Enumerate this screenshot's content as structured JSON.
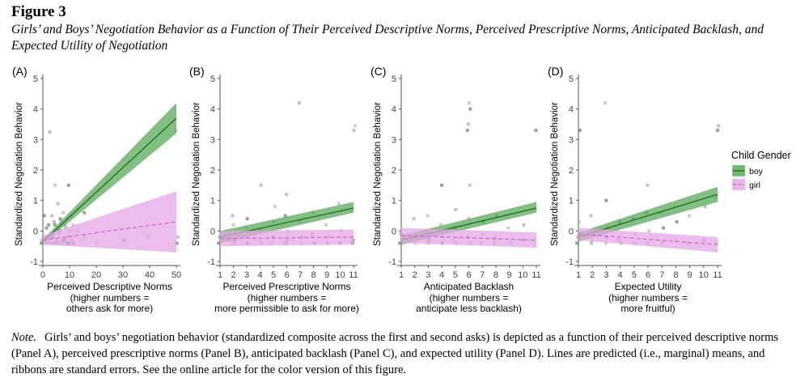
{
  "figure": {
    "label": "Figure 3",
    "title": "Girls’ and Boys’ Negotiation Behavior as a Function of Their Perceived Descriptive Norms, Perceived Prescriptive Norms, Anticipated Backlash, and Expected Utility of Negotiation",
    "note_label": "Note.",
    "note_text": "Girls’ and boys’ negotiation behavior (standardized composite across the first and second asks) is depicted as a function of their perceived descriptive norms (Panel A), perceived prescriptive norms (Panel B), anticipated backlash (Panel C), and expected utility (Panel D). Lines are predicted (i.e., marginal) means, and ribbons are standard errors. See the online article for the color version of this figure."
  },
  "legend": {
    "title": "Child Gender",
    "items": [
      {
        "label": "boy",
        "color": "#1f6b1f",
        "fill": "#59a859"
      },
      {
        "label": "girl",
        "color": "#cc6ccc",
        "fill": "#e6a6e6"
      }
    ]
  },
  "chart_data": [
    {
      "type": "line",
      "panel": "(A)",
      "ylabel": "Standardized Negotiation Behavior",
      "xlabel": "Perceived Descriptive Norms",
      "xlabel_sub": [
        "(higher numbers =",
        "others ask for more)"
      ],
      "xlim": [
        0,
        50
      ],
      "ylim": [
        -1,
        5
      ],
      "xticks": [
        0,
        10,
        20,
        30,
        40,
        50
      ],
      "yticks": [
        -1,
        0,
        1,
        2,
        3,
        4,
        5
      ],
      "series": [
        {
          "name": "boy",
          "x": [
            0,
            50
          ],
          "y": [
            -0.35,
            3.7
          ],
          "lower": [
            -0.42,
            3.2
          ],
          "upper": [
            -0.28,
            4.2
          ],
          "linestyle": "solid"
        },
        {
          "name": "girl",
          "x": [
            0,
            50
          ],
          "y": [
            -0.3,
            0.3
          ],
          "lower": [
            -0.45,
            -0.7
          ],
          "upper": [
            -0.15,
            1.3
          ],
          "linestyle": "dashed"
        }
      ],
      "points": [
        [
          0,
          -0.4
        ],
        [
          0,
          -0.3
        ],
        [
          0,
          -0.2
        ],
        [
          0,
          0.5
        ],
        [
          1,
          -0.4
        ],
        [
          1,
          -0.2
        ],
        [
          1,
          0.1
        ],
        [
          2,
          -0.4
        ],
        [
          2,
          -0.3
        ],
        [
          2,
          0.2
        ],
        [
          2,
          3.25
        ],
        [
          3,
          -0.4
        ],
        [
          3,
          -0.1
        ],
        [
          3,
          0.5
        ],
        [
          4,
          -0.4
        ],
        [
          4,
          -0.2
        ],
        [
          4,
          0.3
        ],
        [
          4,
          1.5
        ],
        [
          5,
          -0.4
        ],
        [
          5,
          -0.3
        ],
        [
          5,
          0.0
        ],
        [
          5,
          0.2
        ],
        [
          6,
          -0.4
        ],
        [
          6,
          -0.1
        ],
        [
          6,
          0.4
        ],
        [
          6,
          0.9
        ],
        [
          7,
          -0.4
        ],
        [
          7,
          -0.3
        ],
        [
          7,
          0.0
        ],
        [
          7,
          0.3
        ],
        [
          8,
          -0.3
        ],
        [
          8,
          0.1
        ],
        [
          8,
          0.6
        ],
        [
          9,
          -0.4
        ],
        [
          9,
          -0.2
        ],
        [
          9,
          0.2
        ],
        [
          10,
          -0.4
        ],
        [
          10,
          0.0
        ],
        [
          10,
          0.5
        ],
        [
          10,
          1.5
        ],
        [
          11,
          -0.3
        ],
        [
          11,
          0.2
        ],
        [
          12,
          -0.4
        ],
        [
          13,
          0.0
        ],
        [
          14,
          -0.3
        ],
        [
          15,
          0.6
        ],
        [
          16,
          -0.2
        ],
        [
          20,
          -0.4
        ],
        [
          30,
          -0.3
        ],
        [
          40,
          -0.2
        ],
        [
          50,
          3.3
        ],
        [
          50,
          -0.4
        ],
        [
          50,
          -0.2
        ]
      ]
    },
    {
      "type": "line",
      "panel": "(B)",
      "ylabel": "Standardized Negotiation Behavior",
      "xlabel": "Perceived Prescriptive Norms",
      "xlabel_sub": [
        "(higher numbers =",
        "more permissible to ask for more)"
      ],
      "xlim": [
        1,
        11
      ],
      "ylim": [
        -1,
        5
      ],
      "xticks": [
        1,
        2,
        3,
        4,
        5,
        6,
        7,
        8,
        9,
        10,
        11
      ],
      "yticks": [
        -1,
        0,
        1,
        2,
        3,
        4,
        5
      ],
      "series": [
        {
          "name": "boy",
          "x": [
            1,
            11
          ],
          "y": [
            -0.2,
            0.75
          ],
          "lower": [
            -0.4,
            0.6
          ],
          "upper": [
            0.0,
            0.95
          ],
          "linestyle": "solid"
        },
        {
          "name": "girl",
          "x": [
            1,
            11
          ],
          "y": [
            -0.25,
            -0.2
          ],
          "lower": [
            -0.5,
            -0.45
          ],
          "upper": [
            0.0,
            0.05
          ],
          "linestyle": "dashed"
        }
      ],
      "points": [
        [
          1,
          -0.4
        ],
        [
          1,
          -0.2
        ],
        [
          2,
          -0.4
        ],
        [
          2,
          -0.3
        ],
        [
          2,
          0.5
        ],
        [
          2,
          0.2
        ],
        [
          3,
          -0.4
        ],
        [
          3,
          -0.2
        ],
        [
          3,
          0.1
        ],
        [
          3,
          0.4
        ],
        [
          4,
          -0.4
        ],
        [
          4,
          -0.3
        ],
        [
          4,
          0.0
        ],
        [
          4,
          1.5
        ],
        [
          5,
          -0.4
        ],
        [
          5,
          -0.2
        ],
        [
          5,
          0.3
        ],
        [
          5,
          0.8
        ],
        [
          6,
          -0.4
        ],
        [
          6,
          -0.3
        ],
        [
          6,
          0.0
        ],
        [
          6,
          0.5
        ],
        [
          6,
          1.2
        ],
        [
          7,
          -0.4
        ],
        [
          7,
          -0.2
        ],
        [
          7,
          4.2
        ],
        [
          7,
          0.3
        ],
        [
          8,
          -0.4
        ],
        [
          8,
          -0.1
        ],
        [
          8,
          0.6
        ],
        [
          9,
          -0.4
        ],
        [
          9,
          -0.2
        ],
        [
          9,
          0.2
        ],
        [
          10,
          -0.4
        ],
        [
          10,
          0.0
        ],
        [
          10,
          0.9
        ],
        [
          11,
          -0.3
        ],
        [
          11,
          3.3
        ],
        [
          11,
          3.45
        ],
        [
          11,
          -0.4
        ]
      ]
    },
    {
      "type": "line",
      "panel": "(C)",
      "ylabel": "Standardized Negotiation Behavior",
      "xlabel": "Anticipated Backlash",
      "xlabel_sub": [
        "(higher numbers =",
        "anticipate less backlash)"
      ],
      "xlim": [
        1,
        11
      ],
      "ylim": [
        -1,
        5
      ],
      "xticks": [
        1,
        2,
        3,
        4,
        5,
        6,
        7,
        8,
        9,
        10,
        11
      ],
      "yticks": [
        -1,
        0,
        1,
        2,
        3,
        4,
        5
      ],
      "series": [
        {
          "name": "boy",
          "x": [
            1,
            11
          ],
          "y": [
            -0.3,
            0.75
          ],
          "lower": [
            -0.45,
            0.6
          ],
          "upper": [
            -0.15,
            0.95
          ],
          "linestyle": "solid"
        },
        {
          "name": "girl",
          "x": [
            1,
            11
          ],
          "y": [
            -0.15,
            -0.3
          ],
          "lower": [
            -0.4,
            -0.55
          ],
          "upper": [
            0.1,
            -0.05
          ],
          "linestyle": "dashed"
        }
      ],
      "points": [
        [
          1,
          -0.4
        ],
        [
          1,
          -0.1
        ],
        [
          2,
          -0.4
        ],
        [
          2,
          -0.2
        ],
        [
          2,
          0.4
        ],
        [
          3,
          -0.4
        ],
        [
          3,
          -0.3
        ],
        [
          3,
          0.0
        ],
        [
          3,
          0.5
        ],
        [
          4,
          -0.4
        ],
        [
          4,
          -0.2
        ],
        [
          4,
          0.2
        ],
        [
          4,
          1.5
        ],
        [
          5,
          -0.4
        ],
        [
          5,
          -0.3
        ],
        [
          5,
          0.1
        ],
        [
          5,
          0.7
        ],
        [
          6,
          -0.4
        ],
        [
          6,
          -0.2
        ],
        [
          6,
          0.4
        ],
        [
          6,
          1.5
        ],
        [
          6,
          3.3
        ],
        [
          6,
          3.5
        ],
        [
          6,
          4.2
        ],
        [
          6,
          4.0
        ],
        [
          7,
          -0.4
        ],
        [
          7,
          -0.1
        ],
        [
          7,
          0.3
        ],
        [
          8,
          -0.4
        ],
        [
          8,
          -0.2
        ],
        [
          8,
          0.5
        ],
        [
          9,
          -0.4
        ],
        [
          9,
          0.1
        ],
        [
          10,
          -0.3
        ],
        [
          10,
          0.2
        ],
        [
          11,
          -0.4
        ],
        [
          11,
          3.3
        ]
      ]
    },
    {
      "type": "line",
      "panel": "(D)",
      "ylabel": "Standardized Negotiation Behavior",
      "xlabel": "Expected Utility",
      "xlabel_sub": [
        "(higher numbers =",
        "more fruitful)"
      ],
      "xlim": [
        1,
        11
      ],
      "ylim": [
        -1,
        5
      ],
      "xticks": [
        1,
        2,
        3,
        4,
        5,
        6,
        7,
        8,
        9,
        10,
        11
      ],
      "yticks": [
        -1,
        0,
        1,
        2,
        3,
        4,
        5
      ],
      "series": [
        {
          "name": "boy",
          "x": [
            1,
            11
          ],
          "y": [
            -0.2,
            1.2
          ],
          "lower": [
            -0.35,
            0.95
          ],
          "upper": [
            -0.05,
            1.45
          ],
          "linestyle": "solid"
        },
        {
          "name": "girl",
          "x": [
            1,
            11
          ],
          "y": [
            -0.1,
            -0.45
          ],
          "lower": [
            -0.3,
            -0.7
          ],
          "upper": [
            0.1,
            -0.2
          ],
          "linestyle": "dashed"
        }
      ],
      "points": [
        [
          1,
          -0.4
        ],
        [
          1,
          -0.2
        ],
        [
          1,
          0.3
        ],
        [
          1,
          3.3
        ],
        [
          2,
          -0.4
        ],
        [
          2,
          -0.3
        ],
        [
          2,
          0.0
        ],
        [
          2,
          0.5
        ],
        [
          3,
          -0.4
        ],
        [
          3,
          -0.2
        ],
        [
          3,
          0.1
        ],
        [
          3,
          4.2
        ],
        [
          3,
          1.0
        ],
        [
          4,
          -0.4
        ],
        [
          4,
          -0.3
        ],
        [
          4,
          0.3
        ],
        [
          5,
          -0.4
        ],
        [
          5,
          -0.1
        ],
        [
          5,
          0.4
        ],
        [
          6,
          -0.4
        ],
        [
          6,
          0.0
        ],
        [
          6,
          0.6
        ],
        [
          6,
          1.5
        ],
        [
          7,
          -0.4
        ],
        [
          7,
          0.1
        ],
        [
          7,
          0.6
        ],
        [
          8,
          -0.3
        ],
        [
          8,
          0.3
        ],
        [
          9,
          -0.4
        ],
        [
          9,
          0.5
        ],
        [
          10,
          -0.3
        ],
        [
          10,
          0.8
        ],
        [
          11,
          -0.4
        ],
        [
          11,
          3.3
        ],
        [
          11,
          3.45
        ],
        [
          11,
          1.1
        ]
      ]
    }
  ]
}
